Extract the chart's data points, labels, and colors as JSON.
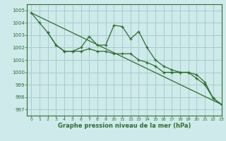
{
  "title": "Graphe pression niveau de la mer (hPa)",
  "background_color": "#ceeaea",
  "grid_color": "#a8cccc",
  "line_color": "#2d6e2d",
  "xlim": [
    -0.5,
    23
  ],
  "ylim": [
    996.5,
    1005.5
  ],
  "yticks": [
    997,
    998,
    999,
    1000,
    1001,
    1002,
    1003,
    1004,
    1005
  ],
  "xticks": [
    0,
    1,
    2,
    3,
    4,
    5,
    6,
    7,
    8,
    9,
    10,
    11,
    12,
    13,
    14,
    15,
    16,
    17,
    18,
    19,
    20,
    21,
    22,
    23
  ],
  "line1_x": [
    0,
    1,
    2,
    3,
    4,
    5,
    6,
    7,
    8,
    9,
    10,
    11,
    12,
    13,
    14,
    15,
    16,
    17,
    18,
    19,
    20,
    21,
    22,
    23
  ],
  "line1_y": [
    1004.8,
    1004.0,
    1003.2,
    1002.2,
    1001.7,
    1001.7,
    1002.0,
    1002.9,
    1002.2,
    1002.2,
    1003.8,
    1003.7,
    1002.7,
    1003.3,
    1002.0,
    1001.0,
    1000.5,
    1000.2,
    1000.0,
    1000.0,
    999.5,
    999.0,
    997.9,
    997.4
  ],
  "line2_x": [
    2,
    3,
    4,
    5,
    6,
    7,
    8,
    9,
    10,
    11,
    12,
    13,
    14,
    15,
    16,
    17,
    18,
    19,
    20,
    21,
    22,
    23
  ],
  "line2_y": [
    1003.2,
    1002.2,
    1001.7,
    1001.7,
    1001.7,
    1001.9,
    1001.7,
    1001.7,
    1001.5,
    1001.5,
    1001.5,
    1001.0,
    1000.8,
    1000.5,
    1000.0,
    1000.0,
    1000.0,
    1000.0,
    999.8,
    999.2,
    997.9,
    997.4
  ],
  "line3_x": [
    0,
    23
  ],
  "line3_y": [
    1004.8,
    997.4
  ]
}
